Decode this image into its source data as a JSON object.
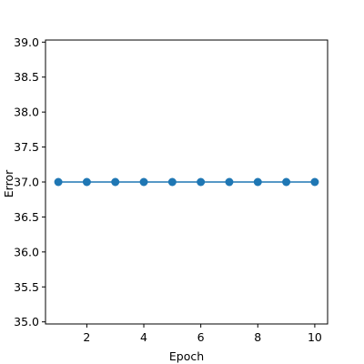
{
  "chart_data": {
    "type": "line",
    "title": "",
    "xlabel": "Epoch",
    "ylabel": "Error",
    "x": [
      1,
      2,
      3,
      4,
      5,
      6,
      7,
      8,
      9,
      10
    ],
    "series": [
      {
        "values": [
          37,
          37,
          37,
          37,
          37,
          37,
          37,
          37,
          37,
          37
        ],
        "color": "#1f77b4",
        "marker": "circle"
      }
    ],
    "xlim": [
      0.55,
      10.45
    ],
    "ylim": [
      34.97,
      39.03
    ],
    "xticks": [
      2,
      4,
      6,
      8,
      10
    ],
    "xtick_labels": [
      "2",
      "4",
      "6",
      "8",
      "10"
    ],
    "yticks": [
      35.0,
      35.5,
      36.0,
      36.5,
      37.0,
      37.5,
      38.0,
      38.5,
      39.0
    ],
    "ytick_labels": [
      "35.0",
      "35.5",
      "36.0",
      "36.5",
      "37.0",
      "37.5",
      "38.0",
      "38.5",
      "39.0"
    ],
    "grid": false,
    "legend": "none"
  }
}
